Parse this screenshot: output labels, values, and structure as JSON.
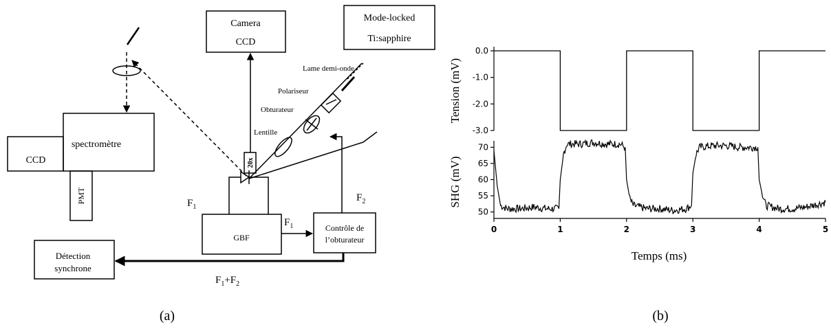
{
  "panel_a": {
    "label": "(a)",
    "boxes": {
      "camera_line1": "Camera",
      "camera_line2": "CCD",
      "laser_line1": "Mode-locked",
      "laser_line2": "Ti:sapphire",
      "ccd": "CCD",
      "spectrometre": "spectromètre",
      "pmt": "PMT",
      "gbf": "GBF",
      "controle_line1": "Contrôle de",
      "controle_line2": "l’obturateur",
      "detection_line1": "Détection",
      "detection_line2": "synchrone"
    },
    "optics": {
      "lame": "Lame demi-onde",
      "polariseur": "Polariseur",
      "obturateur": "Obturateur",
      "lentille": "Lentille",
      "objective": "20x"
    },
    "signals": {
      "f1_base": "F",
      "f1_sub": "1",
      "f2_base": "F",
      "f2_sub": "2",
      "sum_base1": "F",
      "sum_sub1": "1",
      "sum_plus": "+F",
      "sum_sub2": "2"
    }
  },
  "panel_b": {
    "label": "(b)",
    "xlabel": "Temps (ms)",
    "top_ylabel": "Tension (mV)",
    "bottom_ylabel": "SHG (mV)"
  },
  "chart_data": [
    {
      "type": "line",
      "ylabel": "Tension (mV)",
      "ylim": [
        -3.0,
        0.0
      ],
      "yticks": [
        "0.0",
        "-1.0",
        "-2.0",
        "-3.0"
      ],
      "xlim": [
        0,
        5
      ],
      "series": [
        {
          "x": [
            0,
            1.0,
            1.0,
            2.0,
            2.0,
            3.0,
            3.0,
            4.0,
            4.0,
            5.0
          ],
          "values": [
            0.0,
            0.0,
            -3.0,
            -3.0,
            0.0,
            0.0,
            -3.0,
            -3.0,
            0.0,
            0.0
          ]
        }
      ]
    },
    {
      "type": "line",
      "ylabel": "SHG (mV)",
      "xlabel": "Temps (ms)",
      "ylim": [
        48,
        72
      ],
      "yticks": [
        "70",
        "65",
        "60",
        "55",
        "50"
      ],
      "xlim": [
        0,
        5
      ],
      "xticks": [
        "0",
        "1",
        "2",
        "3",
        "4",
        "5"
      ],
      "series": [
        {
          "x": [
            0,
            0.05,
            0.1,
            0.2,
            0.4,
            0.6,
            0.8,
            0.98,
            1.0,
            1.05,
            1.1,
            1.3,
            1.5,
            1.7,
            1.9,
            1.98,
            2.0,
            2.05,
            2.1,
            2.3,
            2.5,
            2.7,
            2.9,
            2.98,
            3.0,
            3.05,
            3.1,
            3.3,
            3.5,
            3.7,
            3.9,
            3.98,
            4.0,
            4.05,
            4.1,
            4.3,
            4.5,
            4.7,
            4.9,
            5.0
          ],
          "values": [
            69,
            58,
            52,
            51,
            51,
            51.5,
            51,
            51,
            60,
            68,
            71,
            71,
            71.5,
            71,
            71,
            70,
            60,
            54,
            52,
            51,
            51,
            50.5,
            51,
            52,
            62,
            68,
            70,
            70.5,
            70.5,
            70,
            70,
            70,
            60,
            55,
            52,
            51,
            51,
            51.5,
            52.5,
            53
          ]
        }
      ]
    }
  ]
}
